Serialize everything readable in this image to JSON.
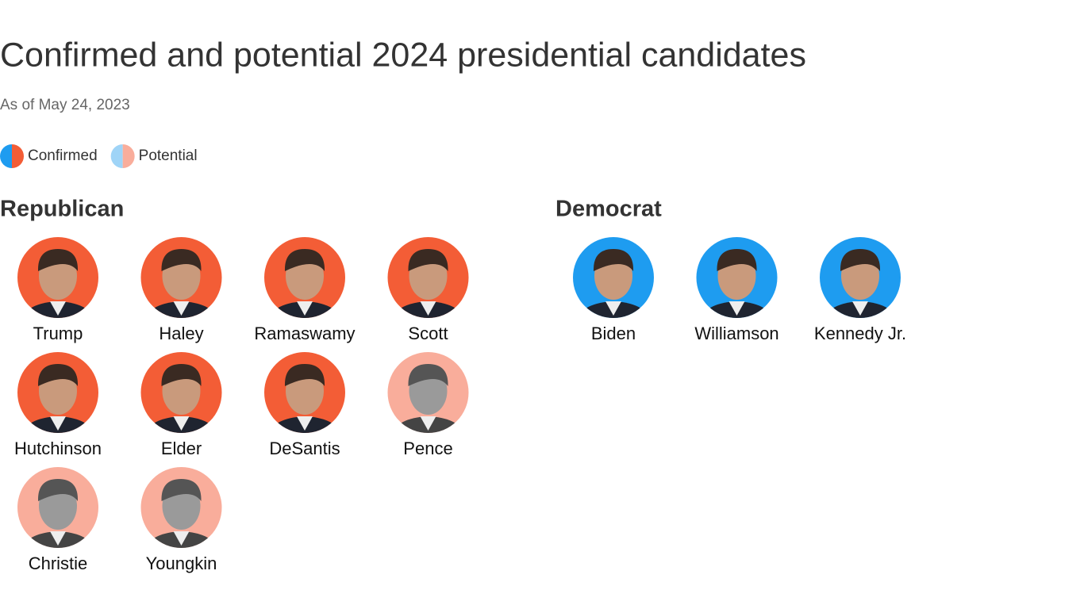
{
  "header": {
    "title": "Confirmed and potential 2024 presidential candidates",
    "subtitle": "As of May 24, 2023"
  },
  "legend": [
    "Confirmed",
    "Potential"
  ],
  "groups": [
    {
      "name": "Republican",
      "colors": {
        "Confirmed": "#f35d36",
        "Potential": "#f9ad9b"
      },
      "candidates": [
        {
          "name": "Trump",
          "status": "Confirmed"
        },
        {
          "name": "Haley",
          "status": "Confirmed"
        },
        {
          "name": "Ramaswamy",
          "status": "Confirmed"
        },
        {
          "name": "Scott",
          "status": "Confirmed"
        },
        {
          "name": "Hutchinson",
          "status": "Confirmed"
        },
        {
          "name": "Elder",
          "status": "Confirmed"
        },
        {
          "name": "DeSantis",
          "status": "Confirmed"
        },
        {
          "name": "Pence",
          "status": "Potential"
        },
        {
          "name": "Christie",
          "status": "Potential"
        },
        {
          "name": "Youngkin",
          "status": "Potential"
        }
      ]
    },
    {
      "name": "Democrat",
      "colors": {
        "Confirmed": "#1e9cf0",
        "Potential": "#9fd4f7"
      },
      "candidates": [
        {
          "name": "Biden",
          "status": "Confirmed"
        },
        {
          "name": "Williamson",
          "status": "Confirmed"
        },
        {
          "name": "Kennedy Jr.",
          "status": "Confirmed"
        }
      ]
    }
  ]
}
